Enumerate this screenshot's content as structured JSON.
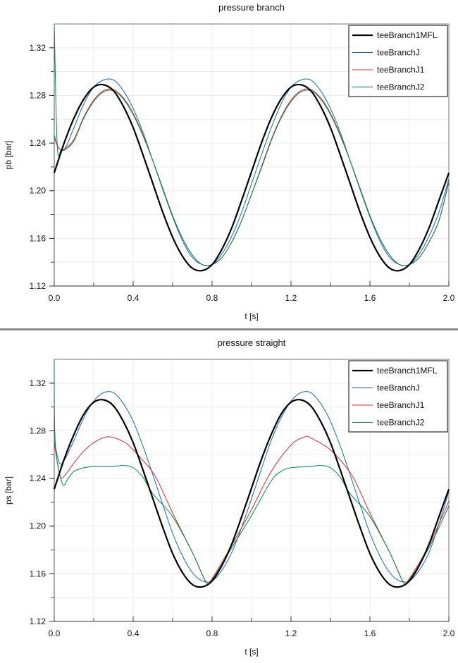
{
  "chart_data": [
    {
      "type": "line",
      "title": "pressure branch",
      "xlabel": "t [s]",
      "ylabel": "pb [bar]",
      "xlim": [
        0,
        2.0
      ],
      "ylim": [
        1.12,
        1.34
      ],
      "xticks": [
        "0.0",
        "0.4",
        "0.8",
        "1.2",
        "1.6",
        "2.0"
      ],
      "yticks": [
        "1.12",
        "1.16",
        "1.20",
        "1.24",
        "1.28",
        "1.32"
      ],
      "grid": true,
      "legend_position": "top-right",
      "series": [
        {
          "name": "teeBranch1MFL",
          "color": "#000000",
          "x": [
            0,
            0.05,
            0.1,
            0.15,
            0.2,
            0.25,
            0.3,
            0.35,
            0.4,
            0.45,
            0.5,
            0.55,
            0.6,
            0.65,
            0.7,
            0.75,
            0.8,
            0.85,
            0.9,
            0.95,
            1.0,
            1.05,
            1.1,
            1.15,
            1.2,
            1.25,
            1.3,
            1.35,
            1.4,
            1.45,
            1.5,
            1.55,
            1.6,
            1.65,
            1.7,
            1.75,
            1.8,
            1.85,
            1.9,
            1.95,
            2.0
          ],
          "y": [
            1.215,
            1.24,
            1.261,
            1.277,
            1.287,
            1.289,
            1.284,
            1.271,
            1.253,
            1.23,
            1.206,
            1.182,
            1.161,
            1.145,
            1.135,
            1.133,
            1.138,
            1.151,
            1.169,
            1.192,
            1.216,
            1.24,
            1.261,
            1.277,
            1.287,
            1.289,
            1.284,
            1.271,
            1.253,
            1.23,
            1.206,
            1.182,
            1.161,
            1.145,
            1.135,
            1.133,
            1.138,
            1.151,
            1.169,
            1.192,
            1.215
          ]
        },
        {
          "name": "teeBranchJ",
          "color": "#1565c8",
          "x": [
            0,
            0.015,
            0.035,
            0.06,
            0.1,
            0.15,
            0.2,
            0.25,
            0.3,
            0.35,
            0.4,
            0.45,
            0.5,
            0.55,
            0.6,
            0.65,
            0.7,
            0.75,
            0.8,
            0.85,
            0.9,
            0.95,
            1.0,
            1.05,
            1.1,
            1.15,
            1.2,
            1.25,
            1.3,
            1.35,
            1.4,
            1.45,
            1.5,
            1.55,
            1.6,
            1.65,
            1.7,
            1.75,
            1.8,
            1.85,
            1.9,
            1.95,
            2.0
          ],
          "y": [
            1.247,
            1.238,
            1.234,
            1.237,
            1.253,
            1.273,
            1.287,
            1.293,
            1.293,
            1.284,
            1.269,
            1.249,
            1.225,
            1.201,
            1.178,
            1.158,
            1.144,
            1.138,
            1.138,
            1.147,
            1.162,
            1.182,
            1.206,
            1.23,
            1.253,
            1.273,
            1.287,
            1.293,
            1.293,
            1.284,
            1.269,
            1.249,
            1.225,
            1.201,
            1.178,
            1.158,
            1.144,
            1.138,
            1.138,
            1.147,
            1.162,
            1.182,
            1.21
          ]
        },
        {
          "name": "teeBranchJ1",
          "color": "#e0282a",
          "x": [
            0,
            0.015,
            0.035,
            0.06,
            0.1,
            0.15,
            0.2,
            0.25,
            0.3,
            0.35,
            0.4,
            0.45,
            0.5,
            0.55,
            0.6,
            0.65,
            0.7,
            0.75,
            0.8,
            0.85,
            0.9,
            0.95,
            1.0,
            1.05,
            1.1,
            1.15,
            1.2,
            1.25,
            1.3,
            1.35,
            1.4,
            1.45,
            1.5,
            1.55,
            1.6,
            1.65,
            1.7,
            1.75,
            1.8,
            1.85,
            1.9,
            1.95,
            2.0
          ],
          "y": [
            1.245,
            1.238,
            1.234,
            1.236,
            1.243,
            1.262,
            1.276,
            1.284,
            1.285,
            1.278,
            1.265,
            1.247,
            1.225,
            1.202,
            1.179,
            1.16,
            1.146,
            1.138,
            1.138,
            1.144,
            1.157,
            1.175,
            1.197,
            1.22,
            1.243,
            1.262,
            1.276,
            1.284,
            1.285,
            1.278,
            1.265,
            1.247,
            1.225,
            1.202,
            1.179,
            1.16,
            1.146,
            1.138,
            1.138,
            1.144,
            1.157,
            1.175,
            1.208
          ]
        },
        {
          "name": "teeBranchJ2",
          "color": "#00884a",
          "x": [
            0,
            0.015,
            0.035,
            0.06,
            0.1,
            0.15,
            0.2,
            0.25,
            0.3,
            0.35,
            0.4,
            0.45,
            0.5,
            0.55,
            0.6,
            0.65,
            0.7,
            0.75,
            0.8,
            0.85,
            0.9,
            0.95,
            1.0,
            1.05,
            1.1,
            1.15,
            1.2,
            1.25,
            1.3,
            1.35,
            1.4,
            1.45,
            1.5,
            1.55,
            1.6,
            1.65,
            1.7,
            1.75,
            1.8,
            1.85,
            1.9,
            1.95,
            2.0
          ],
          "y": [
            1.34,
            1.238,
            1.234,
            1.235,
            1.242,
            1.261,
            1.275,
            1.283,
            1.284,
            1.277,
            1.264,
            1.246,
            1.225,
            1.202,
            1.179,
            1.16,
            1.146,
            1.138,
            1.138,
            1.144,
            1.157,
            1.175,
            1.197,
            1.219,
            1.242,
            1.261,
            1.275,
            1.283,
            1.284,
            1.277,
            1.264,
            1.246,
            1.225,
            1.202,
            1.179,
            1.16,
            1.146,
            1.138,
            1.138,
            1.144,
            1.157,
            1.175,
            1.207
          ]
        }
      ]
    },
    {
      "type": "line",
      "title": "pressure straight",
      "xlabel": "t [s]",
      "ylabel": "ps [bar]",
      "xlim": [
        0,
        2.0
      ],
      "ylim": [
        1.12,
        1.34
      ],
      "xticks": [
        "0.0",
        "0.4",
        "0.8",
        "1.2",
        "1.6",
        "2.0"
      ],
      "yticks": [
        "1.12",
        "1.16",
        "1.20",
        "1.24",
        "1.28",
        "1.32"
      ],
      "grid": true,
      "legend_position": "top-right",
      "series": [
        {
          "name": "teeBranch1MFL",
          "color": "#000000",
          "x": [
            0,
            0.05,
            0.1,
            0.15,
            0.2,
            0.25,
            0.3,
            0.35,
            0.4,
            0.45,
            0.5,
            0.55,
            0.6,
            0.65,
            0.7,
            0.75,
            0.8,
            0.85,
            0.9,
            0.95,
            1.0,
            1.05,
            1.1,
            1.15,
            1.2,
            1.25,
            1.3,
            1.35,
            1.4,
            1.45,
            1.5,
            1.55,
            1.6,
            1.65,
            1.7,
            1.75,
            1.8,
            1.85,
            1.9,
            1.95,
            2.0
          ],
          "y": [
            1.231,
            1.256,
            1.277,
            1.294,
            1.304,
            1.306,
            1.301,
            1.288,
            1.27,
            1.247,
            1.223,
            1.199,
            1.177,
            1.161,
            1.151,
            1.149,
            1.154,
            1.167,
            1.185,
            1.208,
            1.232,
            1.256,
            1.277,
            1.294,
            1.304,
            1.306,
            1.301,
            1.288,
            1.27,
            1.247,
            1.223,
            1.199,
            1.177,
            1.161,
            1.151,
            1.149,
            1.154,
            1.167,
            1.185,
            1.208,
            1.231
          ]
        },
        {
          "name": "teeBranchJ",
          "color": "#1565c8",
          "x": [
            0,
            0.02,
            0.035,
            0.06,
            0.1,
            0.15,
            0.2,
            0.25,
            0.3,
            0.35,
            0.4,
            0.45,
            0.5,
            0.55,
            0.6,
            0.65,
            0.7,
            0.75,
            0.8,
            0.85,
            0.9,
            0.95,
            1.0,
            1.05,
            1.1,
            1.15,
            1.2,
            1.25,
            1.3,
            1.35,
            1.4,
            1.45,
            1.5,
            1.55,
            1.6,
            1.65,
            1.7,
            1.75,
            1.8,
            1.85,
            1.9,
            1.95,
            2.0
          ],
          "y": [
            1.272,
            1.256,
            1.252,
            1.258,
            1.272,
            1.291,
            1.305,
            1.312,
            1.312,
            1.303,
            1.288,
            1.267,
            1.243,
            1.218,
            1.194,
            1.175,
            1.161,
            1.154,
            1.154,
            1.163,
            1.178,
            1.199,
            1.223,
            1.248,
            1.272,
            1.291,
            1.305,
            1.312,
            1.312,
            1.303,
            1.288,
            1.267,
            1.243,
            1.218,
            1.194,
            1.175,
            1.161,
            1.154,
            1.154,
            1.163,
            1.178,
            1.202,
            1.229
          ]
        },
        {
          "name": "teeBranchJ1",
          "color": "#e0282a",
          "x": [
            0,
            0.03,
            0.06,
            0.1,
            0.15,
            0.2,
            0.27,
            0.35,
            0.4,
            0.5,
            0.55,
            0.6,
            0.7,
            0.77,
            0.8,
            0.9,
            1.0,
            1.1,
            1.2,
            1.27,
            1.3,
            1.4,
            1.5,
            1.55,
            1.6,
            1.7,
            1.77,
            1.8,
            1.9,
            2.0
          ],
          "y": [
            1.27,
            1.242,
            1.244,
            1.253,
            1.263,
            1.27,
            1.275,
            1.271,
            1.264,
            1.245,
            1.229,
            1.211,
            1.178,
            1.153,
            1.156,
            1.184,
            1.214,
            1.246,
            1.268,
            1.275,
            1.274,
            1.264,
            1.245,
            1.229,
            1.211,
            1.178,
            1.153,
            1.156,
            1.184,
            1.221
          ]
        },
        {
          "name": "teeBranchJ2",
          "color": "#00884a",
          "x": [
            0,
            0.005,
            0.04,
            0.07,
            0.1,
            0.15,
            0.2,
            0.3,
            0.35,
            0.4,
            0.45,
            0.5,
            0.6,
            0.7,
            0.77,
            0.8,
            0.9,
            1.0,
            1.1,
            1.15,
            1.2,
            1.3,
            1.35,
            1.4,
            1.45,
            1.5,
            1.6,
            1.7,
            1.77,
            1.8,
            1.9,
            2.0
          ],
          "y": [
            1.34,
            1.27,
            1.236,
            1.24,
            1.246,
            1.249,
            1.25,
            1.25,
            1.251,
            1.249,
            1.241,
            1.227,
            1.208,
            1.178,
            1.153,
            1.155,
            1.182,
            1.209,
            1.238,
            1.246,
            1.249,
            1.25,
            1.251,
            1.249,
            1.241,
            1.227,
            1.208,
            1.178,
            1.153,
            1.155,
            1.182,
            1.217
          ]
        }
      ]
    }
  ]
}
